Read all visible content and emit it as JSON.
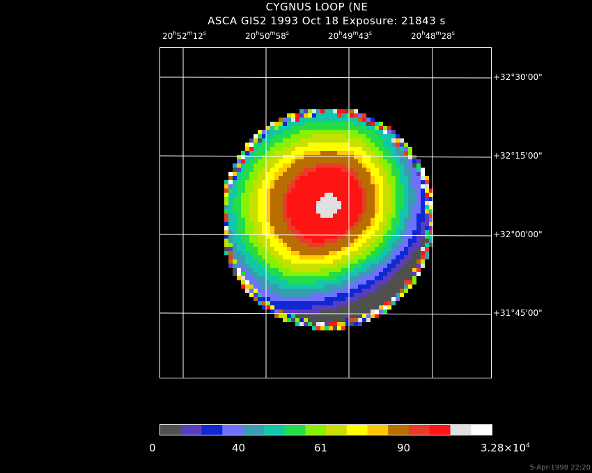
{
  "header": {
    "title": "CYGNUS LOOP (NE",
    "subtitle": "ASCA GIS2   1993 Oct 18    Exposure: 21843 s"
  },
  "ra_ticks": [
    {
      "h": "20",
      "m": "52",
      "s": "12"
    },
    {
      "h": "20",
      "m": "50",
      "s": "58"
    },
    {
      "h": "20",
      "m": "49",
      "s": "43"
    },
    {
      "h": "20",
      "m": "48",
      "s": "28"
    }
  ],
  "dec_ticks": [
    "+32°30'00\"",
    "+32°15'00\"",
    "+32°00'00\"",
    "+31°45'00\""
  ],
  "colorbar": {
    "labels": [
      "0",
      "40",
      "61",
      "90"
    ],
    "max_label": {
      "base": "3.28×10",
      "exp": "4"
    },
    "colors": [
      "#505050",
      "#5a3cbe",
      "#1028d2",
      "#7070ff",
      "#3a9cb4",
      "#10c8a8",
      "#22dc48",
      "#88f000",
      "#c8e000",
      "#ffff00",
      "#ffc800",
      "#b86e00",
      "#e83c28",
      "#ff1414",
      "#e0e0e0",
      "#ffffff"
    ]
  },
  "timestamp": "5-Apr-1998 22:20"
}
